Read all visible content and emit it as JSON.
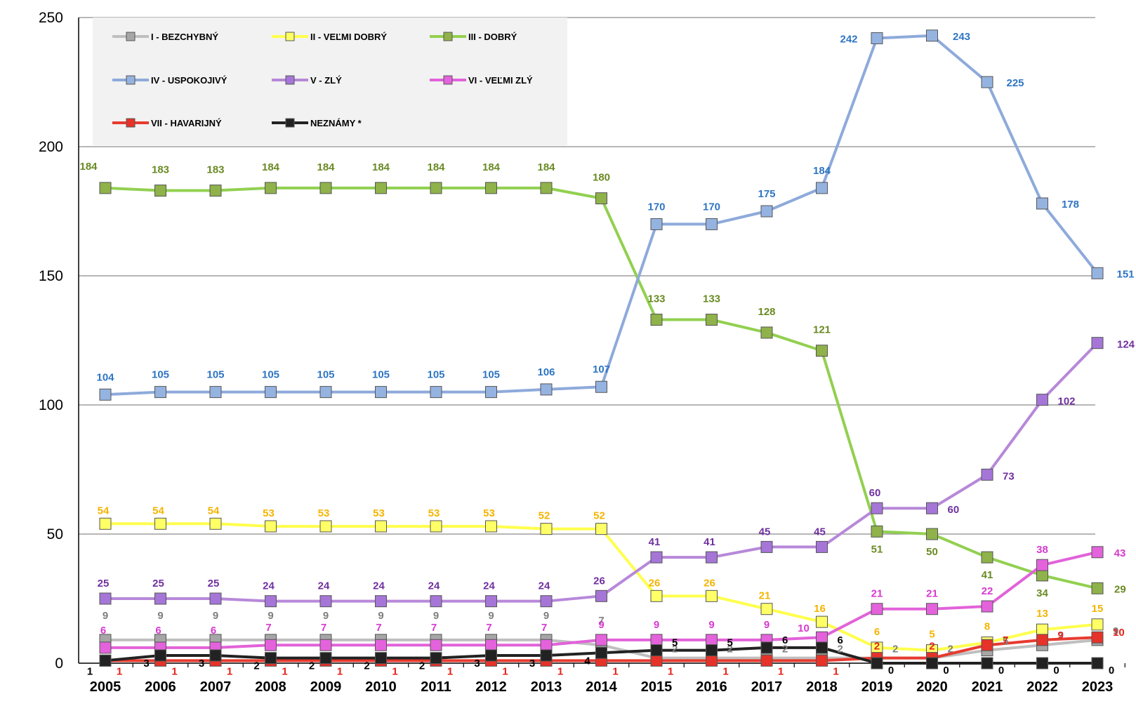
{
  "chart_data": {
    "type": "line",
    "title": "",
    "xlabel": "",
    "ylabel": "",
    "ylim": [
      0,
      250
    ],
    "yticks": [
      0,
      50,
      100,
      150,
      200,
      250
    ],
    "grid": "horizontal",
    "legend_position": "top-left",
    "categories": [
      "2005",
      "2006",
      "2007",
      "2008",
      "2009",
      "2010",
      "2011",
      "2012",
      "2013",
      "2014",
      "2015",
      "2016",
      "2017",
      "2018",
      "2019",
      "2020",
      "2021",
      "2022",
      "2023"
    ],
    "series": [
      {
        "name": "I - BEZCHYBNÝ",
        "line_color": "#bfbfbf",
        "marker_color": "#a6a6a6",
        "label_color": "#7f7f7f",
        "values": [
          9,
          9,
          9,
          9,
          9,
          9,
          9,
          9,
          9,
          7,
          2,
          2,
          2,
          2,
          2,
          2,
          5,
          7,
          9
        ]
      },
      {
        "name": "II - VEĽMI DOBRÝ",
        "line_color": "#ffff4d",
        "marker_color": "#ffff66",
        "label_color": "#f5b400",
        "values": [
          54,
          54,
          54,
          53,
          53,
          53,
          53,
          53,
          52,
          52,
          26,
          26,
          21,
          16,
          6,
          5,
          8,
          13,
          15
        ]
      },
      {
        "name": "III - DOBRÝ",
        "line_color": "#92d050",
        "marker_color": "#8fb24a",
        "label_color": "#6a8a23",
        "values": [
          184,
          183,
          183,
          184,
          184,
          184,
          184,
          184,
          184,
          180,
          133,
          133,
          128,
          121,
          51,
          50,
          41,
          34,
          29
        ]
      },
      {
        "name": "IV - USPOKOJIVÝ",
        "line_color": "#8eaadb",
        "marker_color": "#95b3e0",
        "label_color": "#2e75c3",
        "values": [
          104,
          105,
          105,
          105,
          105,
          105,
          105,
          105,
          106,
          107,
          170,
          170,
          175,
          184,
          242,
          243,
          225,
          178,
          151
        ]
      },
      {
        "name": "V - ZLÝ",
        "line_color": "#b788d9",
        "marker_color": "#a576d8",
        "label_color": "#7030a0",
        "values": [
          25,
          25,
          25,
          24,
          24,
          24,
          24,
          24,
          24,
          26,
          41,
          41,
          45,
          45,
          60,
          60,
          73,
          102,
          124
        ]
      },
      {
        "name": "VI - VEĽMI ZLÝ",
        "line_color": "#e262d9",
        "marker_color": "#e462dc",
        "label_color": "#d63ad0",
        "values": [
          6,
          6,
          6,
          7,
          7,
          7,
          7,
          7,
          7,
          9,
          9,
          9,
          9,
          10,
          21,
          21,
          22,
          38,
          43
        ]
      },
      {
        "name": "VII - HAVARIJNÝ",
        "line_color": "#e83a2f",
        "marker_color": "#e63229",
        "label_color": "#e3221b",
        "values": [
          1,
          1,
          1,
          1,
          1,
          1,
          1,
          1,
          1,
          1,
          1,
          1,
          1,
          1,
          2,
          2,
          7,
          9,
          10
        ]
      },
      {
        "name": "NEZNÁMY *",
        "line_color": "#222222",
        "marker_color": "#222222",
        "label_color": "#000000",
        "values": [
          1,
          3,
          3,
          2,
          2,
          2,
          2,
          3,
          3,
          4,
          5,
          5,
          6,
          6,
          0,
          0,
          0,
          0,
          0
        ]
      }
    ]
  }
}
